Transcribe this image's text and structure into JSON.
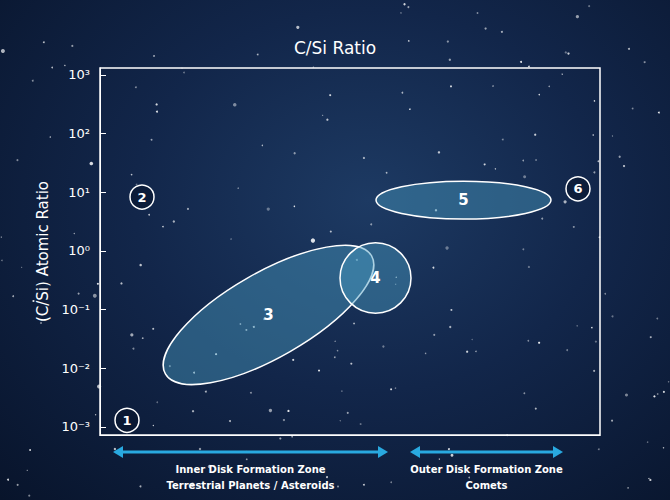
{
  "chart_data": {
    "type": "scatter",
    "title": "C/Si Ratio",
    "y_label": "(C/Si) Atomic Ratio",
    "log": "y",
    "grid": false,
    "tick_labels": "y",
    "color": "#4a9cc0",
    "xlim": [
      0,
      10
    ],
    "xticks": [],
    "ylim": [
      0.00073,
      1316
    ],
    "yticks": [
      {
        "value": 0.001,
        "label": "10⁻³"
      },
      {
        "value": 0.01,
        "label": "10⁻²"
      },
      {
        "value": 0.1,
        "label": "10⁻¹"
      },
      {
        "value": 1,
        "label": "10⁰"
      },
      {
        "value": 10,
        "label": "10¹"
      },
      {
        "value": 100,
        "label": "10²"
      },
      {
        "value": 1000,
        "label": "10³"
      }
    ],
    "series": [
      {
        "name": "1",
        "marker": "circle",
        "x": 0.54,
        "y": 0.0013
      },
      {
        "name": "2",
        "marker": "circle",
        "x": 0.84,
        "y": 8.3
      },
      {
        "name": "3",
        "marker": "tilted ellipse",
        "x": [
          1.2,
          5.54
        ],
        "y": [
          0.0071,
          0.93
        ]
      },
      {
        "name": "4",
        "marker": "ellipse",
        "x": [
          4.8,
          6.22
        ],
        "y": [
          0.087,
          1.38
        ]
      },
      {
        "name": "5",
        "marker": "ellipse",
        "x": [
          5.52,
          9.02
        ],
        "y": [
          3.5,
          15.5
        ]
      },
      {
        "name": "6",
        "marker": "circle",
        "x": 9.56,
        "y": 11.5
      }
    ],
    "annotations": [
      {
        "text": [
          "Inner Disk Formation Zone",
          "Terrestrial Planets / Asteroids"
        ],
        "x": [
          0.26,
          5.76
        ]
      },
      {
        "text": [
          "Outer Disk Formation Zone",
          "Comets"
        ],
        "x": [
          6.2,
          9.26
        ]
      }
    ]
  }
}
